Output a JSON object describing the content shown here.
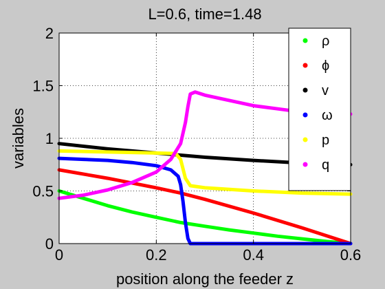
{
  "chart_data": {
    "type": "line",
    "title": "L=0.6, time=1.48",
    "xlabel": "position along the feeder z",
    "ylabel": "variables",
    "xlim": [
      0,
      0.6
    ],
    "ylim": [
      0,
      2
    ],
    "xticks": [
      0,
      0.2,
      0.4,
      0.6
    ],
    "xtick_labels": [
      "0",
      "0.2",
      "0.4",
      "0.6"
    ],
    "yticks": [
      0,
      0.5,
      1,
      1.5,
      2
    ],
    "ytick_labels": [
      "0",
      "0.5",
      "1",
      "1.5",
      "2"
    ],
    "grid": true,
    "legend_position": "top-right",
    "series": [
      {
        "name": "ρ",
        "color": "#00ff00",
        "x": [
          0,
          0.05,
          0.1,
          0.15,
          0.2,
          0.25,
          0.3,
          0.35,
          0.4,
          0.45,
          0.5,
          0.55,
          0.6
        ],
        "y": [
          0.5,
          0.43,
          0.36,
          0.3,
          0.25,
          0.2,
          0.165,
          0.13,
          0.1,
          0.07,
          0.045,
          0.02,
          0.0
        ]
      },
      {
        "name": "ϕ",
        "color": "#ff0000",
        "x": [
          0,
          0.1,
          0.2,
          0.25,
          0.3,
          0.4,
          0.5,
          0.6
        ],
        "y": [
          0.7,
          0.62,
          0.53,
          0.48,
          0.42,
          0.29,
          0.15,
          0.0
        ]
      },
      {
        "name": "v",
        "color": "#000000",
        "x": [
          0,
          0.1,
          0.2,
          0.3,
          0.4,
          0.5,
          0.6
        ],
        "y": [
          0.95,
          0.9,
          0.86,
          0.82,
          0.79,
          0.765,
          0.75
        ]
      },
      {
        "name": "ω",
        "color": "#0000ff",
        "x": [
          0,
          0.05,
          0.1,
          0.15,
          0.2,
          0.23,
          0.245,
          0.25,
          0.255,
          0.26,
          0.265,
          0.27,
          0.3,
          0.4,
          0.5,
          0.6
        ],
        "y": [
          0.81,
          0.8,
          0.79,
          0.77,
          0.74,
          0.7,
          0.64,
          0.56,
          0.4,
          0.2,
          0.05,
          0.0,
          0.0,
          0.0,
          0.0,
          0.0
        ]
      },
      {
        "name": "p",
        "color": "#ffff00",
        "x": [
          0,
          0.1,
          0.2,
          0.24,
          0.25,
          0.26,
          0.27,
          0.3,
          0.4,
          0.5,
          0.6
        ],
        "y": [
          0.88,
          0.87,
          0.86,
          0.855,
          0.8,
          0.62,
          0.55,
          0.53,
          0.5,
          0.48,
          0.47
        ]
      },
      {
        "name": "q",
        "color": "#ff00ff",
        "x": [
          0,
          0.05,
          0.1,
          0.15,
          0.2,
          0.23,
          0.25,
          0.26,
          0.265,
          0.27,
          0.28,
          0.3,
          0.35,
          0.4,
          0.45,
          0.5,
          0.55,
          0.6
        ],
        "y": [
          0.43,
          0.46,
          0.51,
          0.58,
          0.68,
          0.8,
          0.95,
          1.15,
          1.3,
          1.42,
          1.44,
          1.41,
          1.36,
          1.31,
          1.28,
          1.25,
          1.24,
          1.23
        ]
      }
    ]
  }
}
